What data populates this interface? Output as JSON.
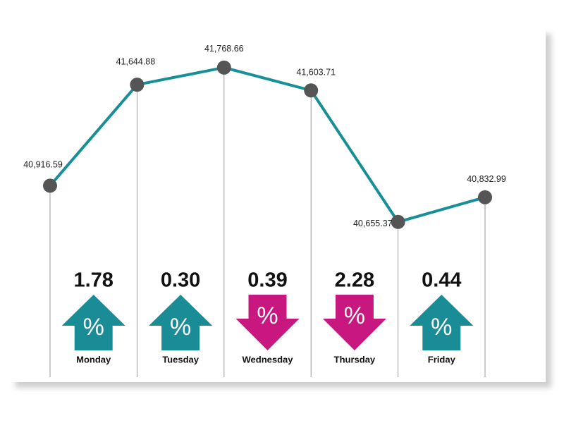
{
  "chart_data": {
    "type": "line",
    "categories": [
      null,
      null,
      null,
      null,
      null,
      null
    ],
    "values": [
      40916.59,
      41644.88,
      41768.66,
      41603.71,
      40655.37,
      40832.99
    ],
    "value_labels": [
      "40,916.59",
      "41,644.88",
      "41,768.66",
      "41,603.71",
      "40,655.37",
      "40,832.99"
    ],
    "color": "#178f96",
    "marker_color": "#555555",
    "ylim": [
      40400,
      41900
    ],
    "percent_symbol": "%",
    "changes": {
      "days": [
        "Monday",
        "Tuesday",
        "Wednesday",
        "Thursday",
        "Friday"
      ],
      "values": [
        1.78,
        0.3,
        0.39,
        2.28,
        0.44
      ],
      "value_labels": [
        "1.78",
        "0.30",
        "0.39",
        "2.28",
        "0.44"
      ],
      "directions": [
        "up",
        "up",
        "down",
        "down",
        "up"
      ],
      "up_color": "#1a8c96",
      "down_color": "#c8177e"
    }
  }
}
